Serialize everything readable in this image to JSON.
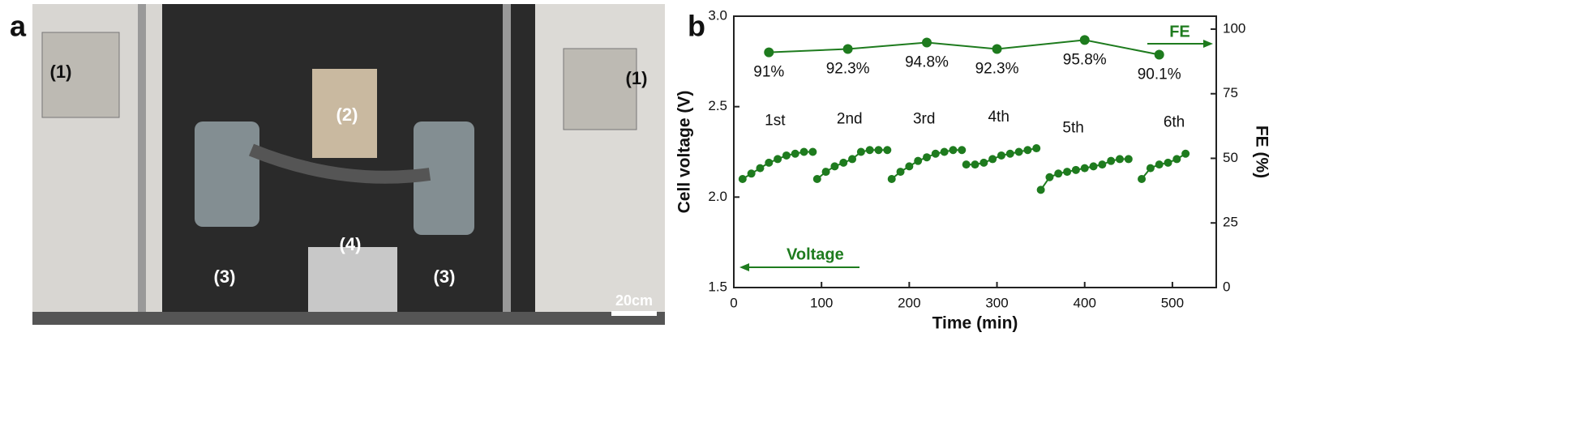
{
  "panel_labels": [
    "a",
    "b"
  ],
  "photo": {
    "labels": [
      "(1)",
      "(1)",
      "(2)",
      "(3)",
      "(3)",
      "(4)"
    ],
    "scale_bar": "20cm"
  },
  "chart_data": {
    "type": "line",
    "xlabel": "Time (min)",
    "ylabel": "Cell voltage (V)",
    "y2label": "FE (%)",
    "xlim": [
      0,
      550
    ],
    "xticks": [
      0,
      100,
      200,
      300,
      400,
      500
    ],
    "ylim": [
      1.5,
      3.0
    ],
    "yticks": [
      1.5,
      {
        "value": 2,
        "label": "2.0"
      },
      2.5,
      {
        "value": 3,
        "label": "3.0"
      }
    ],
    "y2lim": [
      0,
      105
    ],
    "y2ticks": [
      0,
      25,
      50,
      75,
      100
    ],
    "color": "#1e7b1e",
    "annotations": [
      "Voltage",
      "FE"
    ],
    "runs": [
      {
        "label": "1st",
        "x": [
          10,
          20,
          30,
          40,
          50,
          60,
          70,
          80,
          90
        ],
        "values": [
          2.1,
          2.13,
          2.16,
          2.19,
          2.21,
          2.23,
          2.24,
          2.25,
          2.25
        ]
      },
      {
        "label": "2nd",
        "x": [
          95,
          105,
          115,
          125,
          135,
          145,
          155,
          165,
          175
        ],
        "values": [
          2.1,
          2.14,
          2.17,
          2.19,
          2.21,
          2.25,
          2.26,
          2.26,
          2.26
        ]
      },
      {
        "label": "3rd",
        "x": [
          180,
          190,
          200,
          210,
          220,
          230,
          240,
          250,
          260
        ],
        "values": [
          2.1,
          2.14,
          2.17,
          2.2,
          2.22,
          2.24,
          2.25,
          2.26,
          2.26
        ]
      },
      {
        "label": "4th",
        "x": [
          265,
          275,
          285,
          295,
          305,
          315,
          325,
          335,
          345
        ],
        "values": [
          2.18,
          2.18,
          2.19,
          2.21,
          2.23,
          2.24,
          2.25,
          2.26,
          2.27
        ]
      },
      {
        "label": "5th",
        "x": [
          350,
          360,
          370,
          380,
          390,
          400,
          410,
          420,
          430,
          440,
          450
        ],
        "values": [
          2.04,
          2.11,
          2.13,
          2.14,
          2.15,
          2.16,
          2.17,
          2.18,
          2.2,
          2.21,
          2.21
        ]
      },
      {
        "label": "6th",
        "x": [
          465,
          475,
          485,
          495,
          505,
          515
        ],
        "values": [
          2.1,
          2.16,
          2.18,
          2.19,
          2.21,
          2.24
        ]
      }
    ],
    "fe": {
      "axis": "y2",
      "x": [
        40,
        130,
        220,
        300,
        400,
        485
      ],
      "values": [
        91,
        92.3,
        94.8,
        92.3,
        95.8,
        90.1
      ],
      "value_labels": [
        "91%",
        "92.3%",
        "94.8%",
        "92.3%",
        "95.8%",
        "90.1%"
      ]
    }
  }
}
